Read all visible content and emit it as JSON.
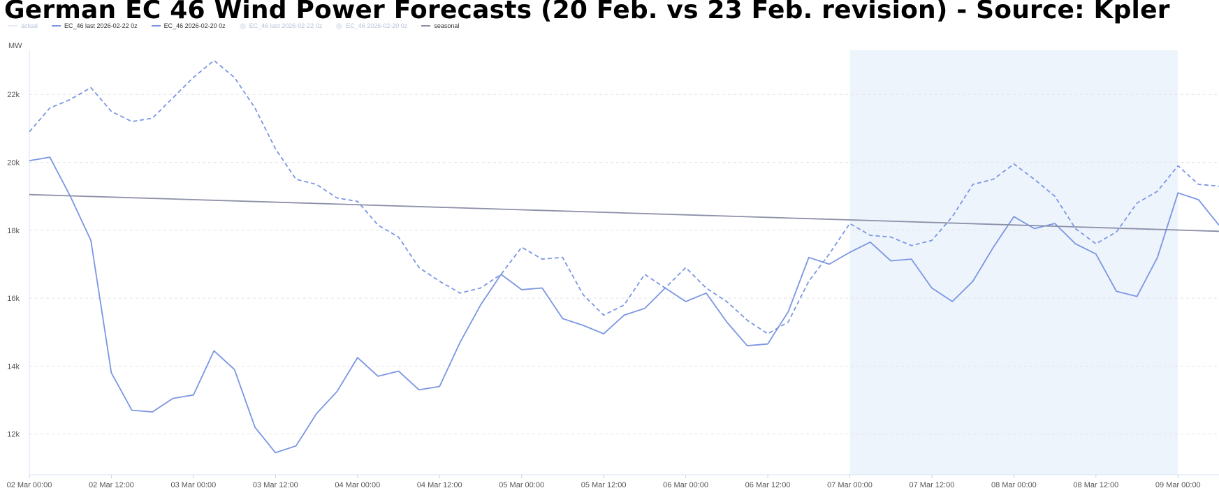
{
  "chart_data": {
    "type": "line",
    "title": "German EC 46 Wind Power Forecasts (20 Feb. vs 23 Feb. revision) - Source: Kpler",
    "ylabel": "MW",
    "ylim": [
      10800,
      23300
    ],
    "xlim": [
      "2026-03-02 00:00",
      "2026-03-09 06:00"
    ],
    "y_ticks": [
      {
        "value": 12000,
        "label": "12k"
      },
      {
        "value": 14000,
        "label": "14k"
      },
      {
        "value": 16000,
        "label": "16k"
      },
      {
        "value": 18000,
        "label": "18k"
      },
      {
        "value": 20000,
        "label": "20k"
      },
      {
        "value": 22000,
        "label": "22k"
      }
    ],
    "x_ticks": [
      {
        "value": "2026-03-02 00:00",
        "label": "02 Mar 00:00"
      },
      {
        "value": "2026-03-02 12:00",
        "label": "02 Mar 12:00"
      },
      {
        "value": "2026-03-03 00:00",
        "label": "03 Mar 00:00"
      },
      {
        "value": "2026-03-03 12:00",
        "label": "03 Mar 12:00"
      },
      {
        "value": "2026-03-04 00:00",
        "label": "04 Mar 00:00"
      },
      {
        "value": "2026-03-04 12:00",
        "label": "04 Mar 12:00"
      },
      {
        "value": "2026-03-05 00:00",
        "label": "05 Mar 00:00"
      },
      {
        "value": "2026-03-05 12:00",
        "label": "05 Mar 12:00"
      },
      {
        "value": "2026-03-06 00:00",
        "label": "06 Mar 00:00"
      },
      {
        "value": "2026-03-06 12:00",
        "label": "06 Mar 12:00"
      },
      {
        "value": "2026-03-07 00:00",
        "label": "07 Mar 00:00"
      },
      {
        "value": "2026-03-07 12:00",
        "label": "07 Mar 12:00"
      },
      {
        "value": "2026-03-08 00:00",
        "label": "08 Mar 00:00"
      },
      {
        "value": "2026-03-08 12:00",
        "label": "08 Mar 12:00"
      },
      {
        "value": "2026-03-09 00:00",
        "label": "09 Mar 00:00"
      }
    ],
    "grid": true,
    "legend_position": "top-left",
    "weekend_band": {
      "from": "2026-03-07 00:00",
      "to": "2026-03-09 00:00",
      "color": "#eef4fc"
    },
    "legend": [
      {
        "label": "actual",
        "marker": "line",
        "color": "#c9d1ea",
        "faded": true
      },
      {
        "label": "EC_46 last 2026-02-22 0z",
        "marker": "line",
        "color": "#7b96e3",
        "faded": false
      },
      {
        "label": "EC_46 2026-02-20 0z",
        "marker": "line",
        "color": "#7b96e3",
        "faded": false
      },
      {
        "label": "EC_46 last 2026-02-22 0z",
        "marker": "dot",
        "color": "#cfd6e6",
        "faded": true
      },
      {
        "label": "EC_46 2026-02-20 0z",
        "marker": "dot",
        "color": "#cfd6e6",
        "faded": true
      },
      {
        "label": "seasonal",
        "marker": "line",
        "color": "#8c8fa8",
        "faded": false
      }
    ],
    "series": [
      {
        "name": "EC_46 last 2026-02-22 0z",
        "color": "#7b96e3",
        "dash": "none",
        "points": [
          [
            "2026-03-02 00:00",
            20050
          ],
          [
            "2026-03-02 03:00",
            20150
          ],
          [
            "2026-03-02 06:00",
            19000
          ],
          [
            "2026-03-02 09:00",
            17700
          ],
          [
            "2026-03-02 12:00",
            13800
          ],
          [
            "2026-03-02 15:00",
            12700
          ],
          [
            "2026-03-02 18:00",
            12650
          ],
          [
            "2026-03-02 21:00",
            13050
          ],
          [
            "2026-03-03 00:00",
            13150
          ],
          [
            "2026-03-03 03:00",
            14450
          ],
          [
            "2026-03-03 06:00",
            13900
          ],
          [
            "2026-03-03 09:00",
            12200
          ],
          [
            "2026-03-03 12:00",
            11450
          ],
          [
            "2026-03-03 15:00",
            11650
          ],
          [
            "2026-03-03 18:00",
            12600
          ],
          [
            "2026-03-03 21:00",
            13250
          ],
          [
            "2026-03-04 00:00",
            14250
          ],
          [
            "2026-03-04 03:00",
            13700
          ],
          [
            "2026-03-04 06:00",
            13850
          ],
          [
            "2026-03-04 09:00",
            13300
          ],
          [
            "2026-03-04 12:00",
            13400
          ],
          [
            "2026-03-04 15:00",
            14700
          ],
          [
            "2026-03-04 18:00",
            15800
          ],
          [
            "2026-03-04 21:00",
            16700
          ],
          [
            "2026-03-05 00:00",
            16250
          ],
          [
            "2026-03-05 03:00",
            16300
          ],
          [
            "2026-03-05 06:00",
            15400
          ],
          [
            "2026-03-05 09:00",
            15200
          ],
          [
            "2026-03-05 12:00",
            14950
          ],
          [
            "2026-03-05 15:00",
            15500
          ],
          [
            "2026-03-05 18:00",
            15700
          ],
          [
            "2026-03-05 21:00",
            16300
          ],
          [
            "2026-03-06 00:00",
            15900
          ],
          [
            "2026-03-06 03:00",
            16150
          ],
          [
            "2026-03-06 06:00",
            15300
          ],
          [
            "2026-03-06 09:00",
            14600
          ],
          [
            "2026-03-06 12:00",
            14650
          ],
          [
            "2026-03-06 15:00",
            15600
          ],
          [
            "2026-03-06 18:00",
            17200
          ],
          [
            "2026-03-06 21:00",
            17000
          ],
          [
            "2026-03-07 00:00",
            17350
          ],
          [
            "2026-03-07 03:00",
            17650
          ],
          [
            "2026-03-07 06:00",
            17100
          ],
          [
            "2026-03-07 09:00",
            17150
          ],
          [
            "2026-03-07 12:00",
            16300
          ],
          [
            "2026-03-07 15:00",
            15900
          ],
          [
            "2026-03-07 18:00",
            16500
          ],
          [
            "2026-03-07 21:00",
            17500
          ],
          [
            "2026-03-08 00:00",
            18400
          ],
          [
            "2026-03-08 03:00",
            18050
          ],
          [
            "2026-03-08 06:00",
            18200
          ],
          [
            "2026-03-08 09:00",
            17600
          ],
          [
            "2026-03-08 12:00",
            17300
          ],
          [
            "2026-03-08 15:00",
            16200
          ],
          [
            "2026-03-08 18:00",
            16050
          ],
          [
            "2026-03-08 21:00",
            17200
          ],
          [
            "2026-03-09 00:00",
            19100
          ],
          [
            "2026-03-09 03:00",
            18900
          ],
          [
            "2026-03-09 06:00",
            18150
          ]
        ]
      },
      {
        "name": "EC_46 2026-02-20 0z",
        "color": "#7b96e3",
        "dash": "6,4",
        "points": [
          [
            "2026-03-02 00:00",
            20900
          ],
          [
            "2026-03-02 03:00",
            21600
          ],
          [
            "2026-03-02 06:00",
            21850
          ],
          [
            "2026-03-02 09:00",
            22200
          ],
          [
            "2026-03-02 12:00",
            21500
          ],
          [
            "2026-03-02 15:00",
            21200
          ],
          [
            "2026-03-02 18:00",
            21300
          ],
          [
            "2026-03-02 21:00",
            21900
          ],
          [
            "2026-03-03 00:00",
            22500
          ],
          [
            "2026-03-03 03:00",
            23000
          ],
          [
            "2026-03-03 06:00",
            22500
          ],
          [
            "2026-03-03 09:00",
            21600
          ],
          [
            "2026-03-03 12:00",
            20400
          ],
          [
            "2026-03-03 15:00",
            19500
          ],
          [
            "2026-03-03 18:00",
            19350
          ],
          [
            "2026-03-03 21:00",
            18950
          ],
          [
            "2026-03-04 00:00",
            18850
          ],
          [
            "2026-03-04 03:00",
            18150
          ],
          [
            "2026-03-04 06:00",
            17800
          ],
          [
            "2026-03-04 09:00",
            16900
          ],
          [
            "2026-03-04 12:00",
            16500
          ],
          [
            "2026-03-04 15:00",
            16150
          ],
          [
            "2026-03-04 18:00",
            16300
          ],
          [
            "2026-03-04 21:00",
            16700
          ],
          [
            "2026-03-05 00:00",
            17500
          ],
          [
            "2026-03-05 03:00",
            17150
          ],
          [
            "2026-03-05 06:00",
            17200
          ],
          [
            "2026-03-05 09:00",
            16100
          ],
          [
            "2026-03-05 12:00",
            15500
          ],
          [
            "2026-03-05 15:00",
            15800
          ],
          [
            "2026-03-05 18:00",
            16700
          ],
          [
            "2026-03-05 21:00",
            16300
          ],
          [
            "2026-03-06 00:00",
            16900
          ],
          [
            "2026-03-06 03:00",
            16300
          ],
          [
            "2026-03-06 06:00",
            15900
          ],
          [
            "2026-03-06 09:00",
            15350
          ],
          [
            "2026-03-06 12:00",
            14950
          ],
          [
            "2026-03-06 15:00",
            15300
          ],
          [
            "2026-03-06 18:00",
            16500
          ],
          [
            "2026-03-06 21:00",
            17300
          ],
          [
            "2026-03-07 00:00",
            18200
          ],
          [
            "2026-03-07 03:00",
            17850
          ],
          [
            "2026-03-07 06:00",
            17800
          ],
          [
            "2026-03-07 09:00",
            17550
          ],
          [
            "2026-03-07 12:00",
            17700
          ],
          [
            "2026-03-07 15:00",
            18400
          ],
          [
            "2026-03-07 18:00",
            19350
          ],
          [
            "2026-03-07 21:00",
            19500
          ],
          [
            "2026-03-08 00:00",
            19950
          ],
          [
            "2026-03-08 03:00",
            19500
          ],
          [
            "2026-03-08 06:00",
            19000
          ],
          [
            "2026-03-08 09:00",
            18050
          ],
          [
            "2026-03-08 12:00",
            17600
          ],
          [
            "2026-03-08 15:00",
            17950
          ],
          [
            "2026-03-08 18:00",
            18800
          ],
          [
            "2026-03-08 21:00",
            19150
          ],
          [
            "2026-03-09 00:00",
            19900
          ],
          [
            "2026-03-09 03:00",
            19350
          ],
          [
            "2026-03-09 06:00",
            19300
          ]
        ]
      },
      {
        "name": "seasonal",
        "color": "#8c8fa8",
        "dash": "none",
        "points": [
          [
            "2026-03-02 00:00",
            19050
          ],
          [
            "2026-03-09 06:00",
            17970
          ]
        ]
      }
    ]
  }
}
